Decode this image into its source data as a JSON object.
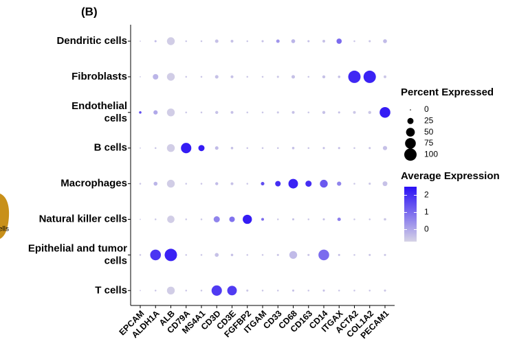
{
  "chart_data": {
    "type": "dotplot",
    "title": "(B)",
    "annotations": [
      "ells"
    ],
    "categories": [
      "EPCAM",
      "ALDH1A",
      "ALB",
      "CD79A",
      "MS4A1",
      "CD3D",
      "CD3E",
      "FGFBP2",
      "ITGAM",
      "CD33",
      "CD68",
      "CD163",
      "CD14",
      "ITGAX",
      "ACTA2",
      "COL1A2",
      "PECAM1"
    ],
    "series": [
      {
        "name": "Dendritic cells",
        "percent": [
          1,
          3,
          40,
          2,
          2,
          8,
          5,
          2,
          3,
          8,
          10,
          3,
          5,
          18,
          2,
          3,
          10
        ],
        "expression": [
          -0.5,
          -0.3,
          -0.6,
          -0.5,
          -0.5,
          -0.4,
          -0.4,
          -0.5,
          -0.4,
          0.3,
          -0.2,
          -0.4,
          -0.4,
          1.0,
          -0.5,
          -0.5,
          -0.3
        ]
      },
      {
        "name": "Fibroblasts",
        "percent": [
          1,
          20,
          40,
          2,
          2,
          8,
          5,
          2,
          2,
          3,
          8,
          2,
          6,
          4,
          100,
          100,
          5
        ],
        "expression": [
          -0.5,
          -0.2,
          -0.6,
          -0.5,
          -0.5,
          -0.4,
          -0.4,
          -0.5,
          -0.5,
          -0.5,
          -0.4,
          -0.5,
          -0.4,
          -0.4,
          2.1,
          2.2,
          -0.5
        ]
      },
      {
        "name": "Endothelial\ncells",
        "percent": [
          4,
          12,
          40,
          2,
          2,
          6,
          5,
          2,
          2,
          3,
          5,
          2,
          6,
          3,
          5,
          6,
          75
        ],
        "expression": [
          1.5,
          0.0,
          -0.6,
          -0.5,
          -0.5,
          -0.4,
          -0.4,
          -0.5,
          -0.5,
          -0.5,
          -0.4,
          -0.5,
          -0.4,
          -0.4,
          -0.5,
          -0.5,
          2.3
        ]
      },
      {
        "name": "B cells",
        "percent": [
          1,
          2,
          40,
          70,
          25,
          8,
          4,
          2,
          2,
          2,
          4,
          2,
          3,
          3,
          2,
          3,
          12
        ],
        "expression": [
          -0.5,
          -0.5,
          -0.6,
          2.3,
          2.3,
          -0.3,
          -0.4,
          -0.5,
          -0.5,
          -0.5,
          -0.4,
          -0.5,
          -0.4,
          -0.4,
          -0.5,
          -0.5,
          -0.4
        ]
      },
      {
        "name": "Macrophages",
        "percent": [
          2,
          10,
          40,
          2,
          2,
          6,
          5,
          2,
          8,
          20,
          60,
          25,
          40,
          12,
          2,
          3,
          15
        ],
        "expression": [
          -0.5,
          -0.2,
          -0.6,
          -0.5,
          -0.5,
          -0.3,
          -0.4,
          -0.5,
          1.5,
          2.0,
          2.2,
          2.0,
          1.3,
          0.6,
          -0.5,
          -0.5,
          -0.4
        ]
      },
      {
        "name": "Natural killer cells",
        "percent": [
          1,
          2,
          35,
          2,
          2,
          25,
          20,
          55,
          5,
          2,
          3,
          2,
          3,
          8,
          2,
          2,
          4
        ],
        "expression": [
          -0.5,
          -0.5,
          -0.6,
          -0.5,
          -0.5,
          0.6,
          0.9,
          2.3,
          1.0,
          -0.5,
          -0.4,
          -0.5,
          -0.4,
          0.7,
          -0.5,
          -0.5,
          -0.5
        ]
      },
      {
        "name": "Epithelial and tumor\ncells",
        "percent": [
          2,
          75,
          100,
          2,
          2,
          10,
          4,
          2,
          2,
          3,
          40,
          3,
          75,
          3,
          2,
          3,
          3
        ],
        "expression": [
          -0.5,
          1.9,
          2.2,
          -0.5,
          -0.5,
          -0.4,
          -0.4,
          -0.5,
          -0.5,
          -0.5,
          -0.3,
          -0.5,
          1.0,
          -0.4,
          -0.5,
          -0.5,
          -0.5
        ]
      },
      {
        "name": "T cells",
        "percent": [
          1,
          2,
          40,
          2,
          2,
          70,
          60,
          3,
          2,
          2,
          3,
          2,
          3,
          2,
          2,
          2,
          3
        ],
        "expression": [
          -0.5,
          -0.5,
          -0.6,
          -0.5,
          -0.5,
          1.8,
          1.8,
          -0.5,
          -0.5,
          -0.5,
          -0.4,
          -0.5,
          -0.4,
          -0.5,
          -0.5,
          -0.5,
          -0.5
        ]
      }
    ],
    "size_legend_title": "Percent Expressed",
    "size_ticks": [
      0,
      25,
      50,
      75,
      100
    ],
    "size_lim": [
      0,
      100
    ],
    "color_legend_title": "Average Expression",
    "clim": [
      -0.7,
      2.5
    ],
    "cticks": [
      2,
      1,
      0
    ],
    "color_low": "#d6d3e6",
    "color_high": "#2a10f5"
  }
}
